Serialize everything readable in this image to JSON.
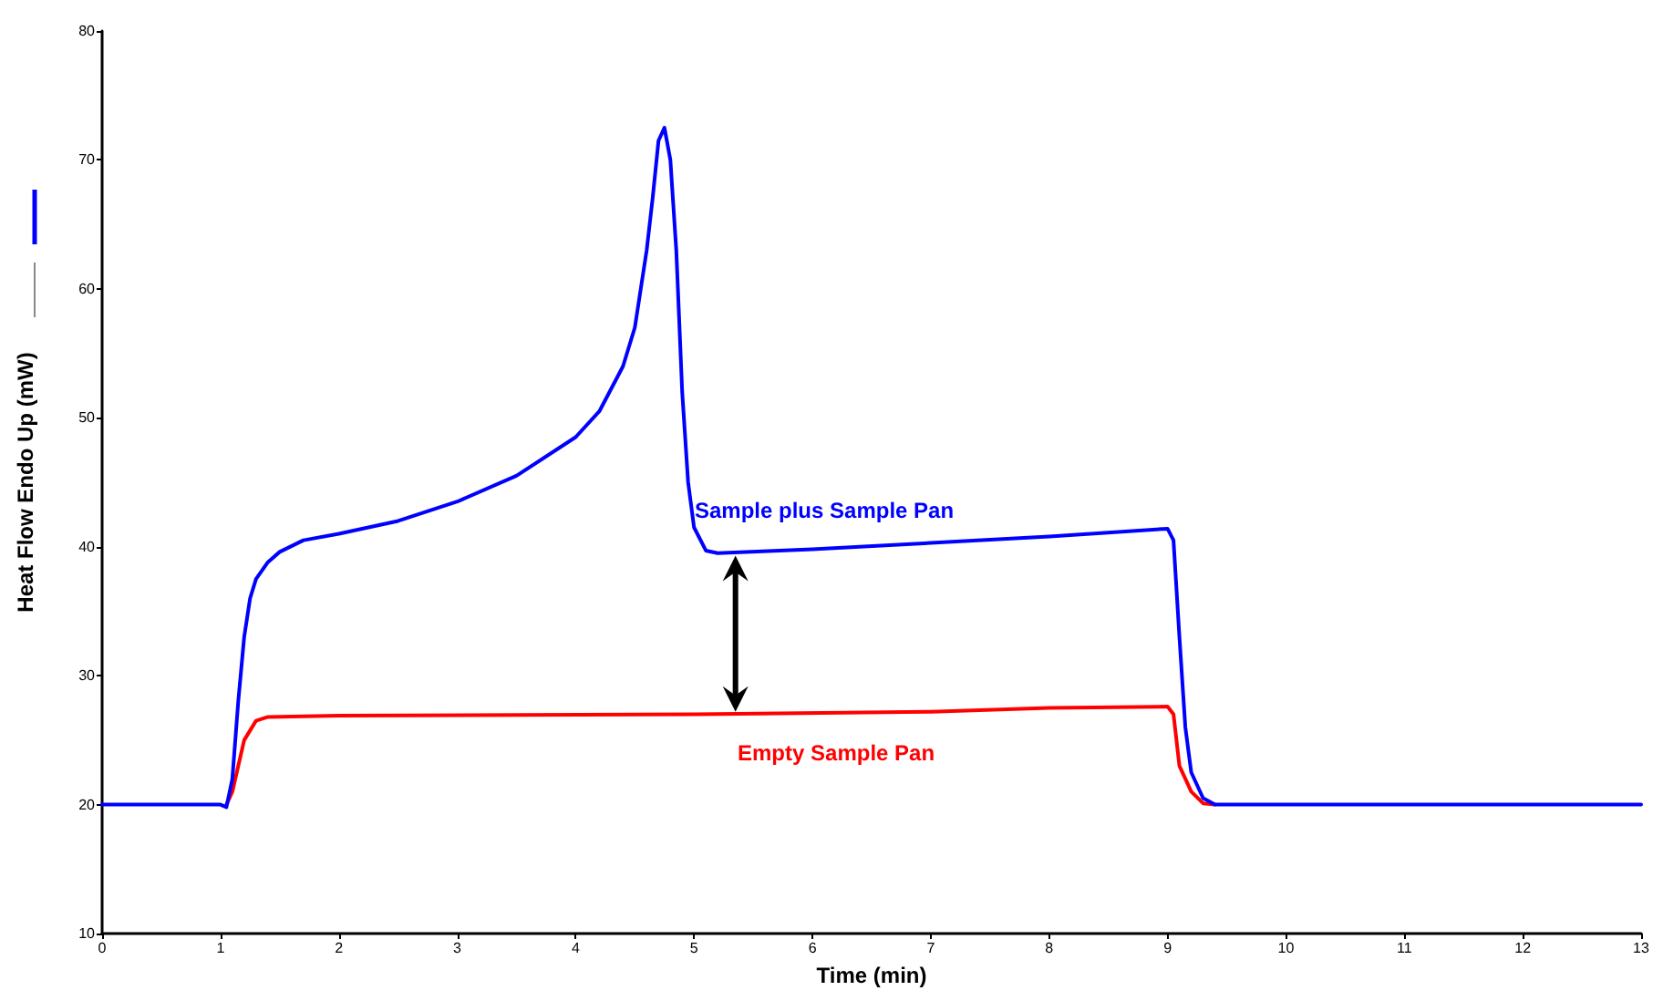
{
  "chart_data": {
    "type": "line",
    "xlabel": "Time (min)",
    "ylabel": "Heat Flow Endo Up (mW)",
    "xlim": [
      0,
      13
    ],
    "xticks": [
      0,
      1,
      2,
      3,
      4,
      5,
      6,
      7,
      8,
      9,
      10,
      11,
      12,
      13
    ],
    "ylim": [
      10,
      80
    ],
    "yticks": [
      10,
      20,
      30,
      40,
      50,
      60,
      70,
      80
    ],
    "grid": false,
    "legend": false,
    "marker": "none",
    "line_style": "solid",
    "series": [
      {
        "name": "Empty Sample Pan",
        "color": "#ff0000",
        "x": [
          1.05,
          1.1,
          1.2,
          1.3,
          1.4,
          2,
          5,
          7,
          8,
          9,
          9.05,
          9.1,
          9.2,
          9.3,
          9.4
        ],
        "values": [
          20,
          21,
          25,
          26.5,
          26.8,
          26.9,
          27,
          27.2,
          27.5,
          27.6,
          27,
          23,
          21,
          20.1,
          20
        ]
      },
      {
        "name": "Sample plus Sample Pan",
        "color": "#0000ff",
        "x": [
          0,
          1,
          1.05,
          1.1,
          1.15,
          1.2,
          1.25,
          1.3,
          1.4,
          1.5,
          1.7,
          2,
          2.5,
          3,
          3.5,
          4,
          4.2,
          4.4,
          4.5,
          4.6,
          4.65,
          4.7,
          4.75,
          4.8,
          4.85,
          4.9,
          4.95,
          5,
          5.1,
          5.2,
          6,
          7,
          8,
          9,
          9.05,
          9.1,
          9.15,
          9.2,
          9.3,
          9.4,
          13
        ],
        "values": [
          20,
          20,
          19.8,
          22,
          28,
          33,
          36,
          37.5,
          38.8,
          39.6,
          40.5,
          41,
          42,
          43.5,
          45.5,
          48.5,
          50.5,
          54,
          57,
          63,
          67,
          71.5,
          72.5,
          70,
          63,
          52,
          45,
          41.5,
          39.7,
          39.5,
          39.8,
          40.3,
          40.8,
          41.4,
          40.5,
          33,
          26,
          22.5,
          20.5,
          20,
          20
        ]
      }
    ]
  }
}
